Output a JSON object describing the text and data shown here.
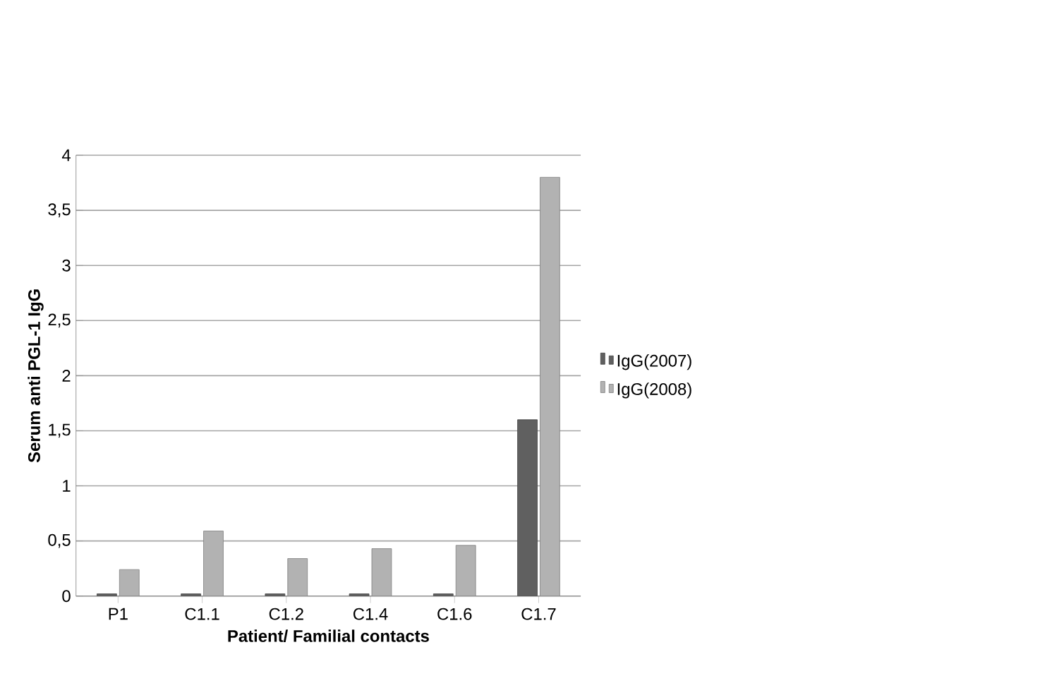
{
  "chart_data": {
    "type": "bar",
    "xlabel": "Patient/ Familial contacts",
    "ylabel": "Serum anti PGL-1 IgG",
    "categories": [
      "P1",
      "C1.1",
      "C1.2",
      "C1.4",
      "C1.6",
      "C1.7"
    ],
    "series": [
      {
        "name": "IgG(2007)",
        "color": "#606060",
        "values": [
          0.02,
          0.02,
          0.02,
          0.02,
          0.02,
          1.6
        ]
      },
      {
        "name": "IgG(2008)",
        "color": "#b2b2b2",
        "values": [
          0.24,
          0.59,
          0.34,
          0.43,
          0.46,
          3.8
        ]
      }
    ],
    "ylim": [
      0,
      4
    ],
    "yticks": [
      0,
      {
        "value": 0.5,
        "label": "0,5"
      },
      1,
      {
        "value": 1.5,
        "label": "1,5"
      },
      2,
      {
        "value": 2.5,
        "label": "2,5"
      },
      3,
      {
        "value": 3.5,
        "label": "3,5"
      },
      4
    ],
    "grid": "y",
    "legend": "right"
  }
}
